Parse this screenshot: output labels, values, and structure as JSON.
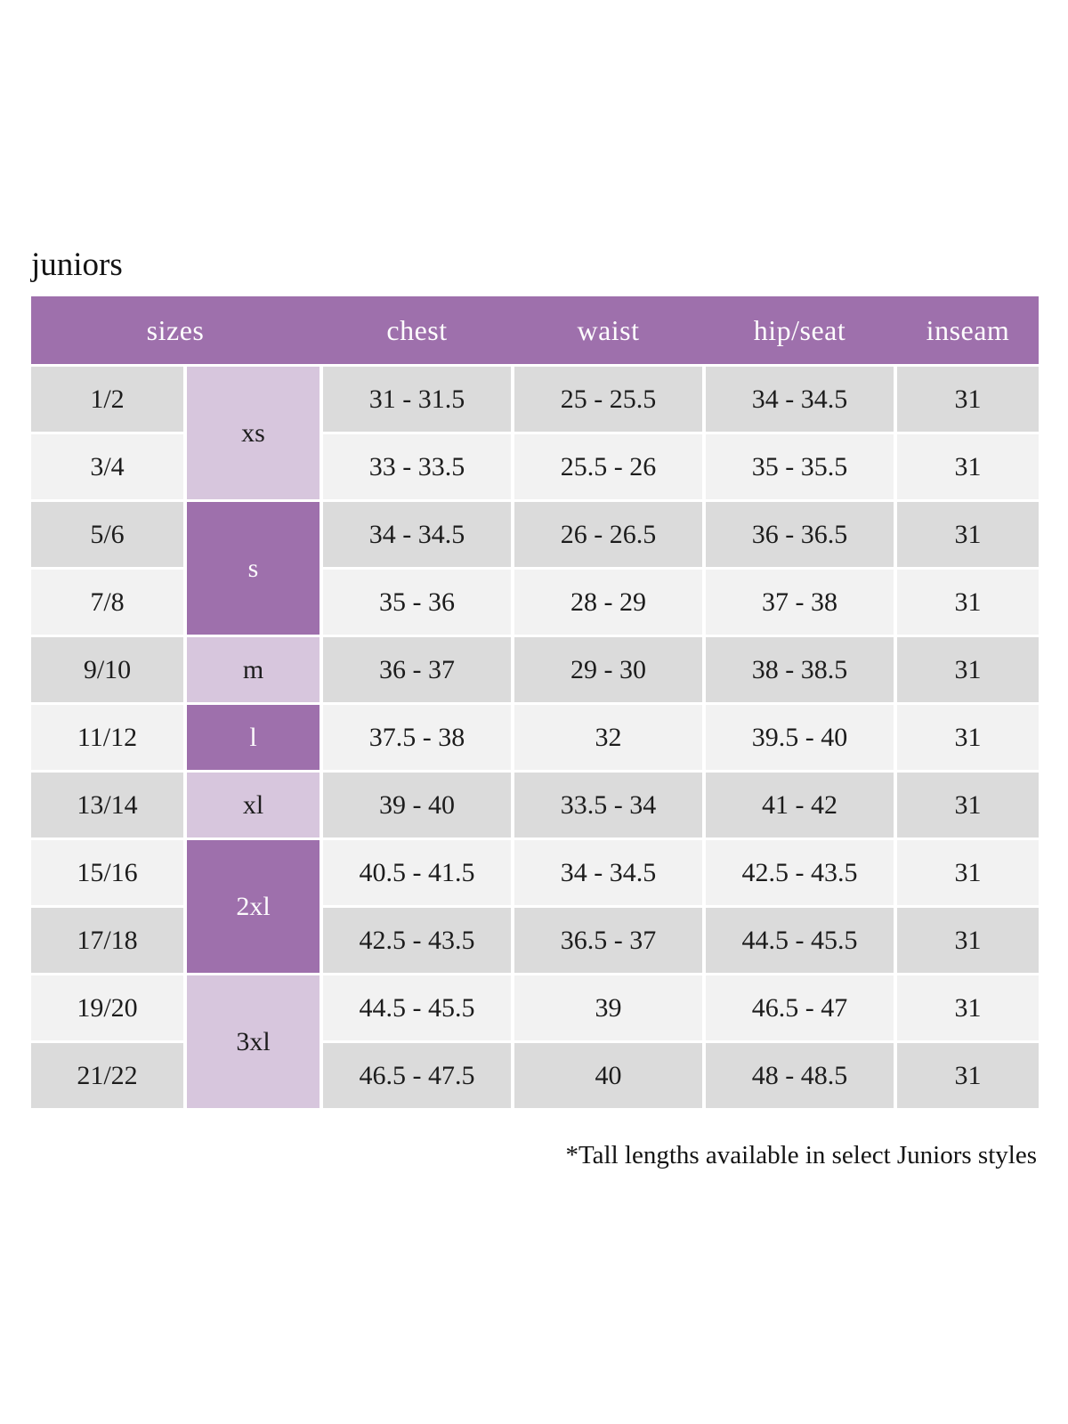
{
  "page": {
    "title": "juniors",
    "footnote": "*Tall lengths available in select Juniors styles"
  },
  "colors": {
    "header_bg": "#9e70ac",
    "size_group_dark_bg": "#9e70ac",
    "size_group_light_bg": "#d7c6dd",
    "row_gray": "#dbdbdb",
    "row_light": "#f2f2f2",
    "header_text": "#ffffff",
    "body_text": "#1c1c1c"
  },
  "table": {
    "header": {
      "sizes": "sizes",
      "chest": "chest",
      "waist": "waist",
      "hip_seat": "hip/seat",
      "inseam": "inseam"
    },
    "size_groups": [
      {
        "label": "xs",
        "rows_spanned": 2,
        "shade": "light"
      },
      {
        "label": "s",
        "rows_spanned": 2,
        "shade": "dark"
      },
      {
        "label": "m",
        "rows_spanned": 1,
        "shade": "light"
      },
      {
        "label": "l",
        "rows_spanned": 1,
        "shade": "dark"
      },
      {
        "label": "xl",
        "rows_spanned": 1,
        "shade": "light"
      },
      {
        "label": "2xl",
        "rows_spanned": 2,
        "shade": "dark"
      },
      {
        "label": "3xl",
        "rows_spanned": 2,
        "shade": "light"
      }
    ],
    "rows": [
      {
        "size": "1/2",
        "chest": "31 - 31.5",
        "waist": "25 - 25.5",
        "hip_seat": "34 - 34.5",
        "inseam": "31"
      },
      {
        "size": "3/4",
        "chest": "33 - 33.5",
        "waist": "25.5 - 26",
        "hip_seat": "35 - 35.5",
        "inseam": "31"
      },
      {
        "size": "5/6",
        "chest": "34 - 34.5",
        "waist": "26 - 26.5",
        "hip_seat": "36 - 36.5",
        "inseam": "31"
      },
      {
        "size": "7/8",
        "chest": "35 - 36",
        "waist": "28 - 29",
        "hip_seat": "37 - 38",
        "inseam": "31"
      },
      {
        "size": "9/10",
        "chest": "36 - 37",
        "waist": "29 - 30",
        "hip_seat": "38 - 38.5",
        "inseam": "31"
      },
      {
        "size": "11/12",
        "chest": "37.5 - 38",
        "waist": "32",
        "hip_seat": "39.5 - 40",
        "inseam": "31"
      },
      {
        "size": "13/14",
        "chest": "39 - 40",
        "waist": "33.5 - 34",
        "hip_seat": "41 - 42",
        "inseam": "31"
      },
      {
        "size": "15/16",
        "chest": "40.5 - 41.5",
        "waist": "34 - 34.5",
        "hip_seat": "42.5 - 43.5",
        "inseam": "31"
      },
      {
        "size": "17/18",
        "chest": "42.5 - 43.5",
        "waist": "36.5 - 37",
        "hip_seat": "44.5 - 45.5",
        "inseam": "31"
      },
      {
        "size": "19/20",
        "chest": "44.5 - 45.5",
        "waist": "39",
        "hip_seat": "46.5 - 47",
        "inseam": "31"
      },
      {
        "size": "21/22",
        "chest": "46.5 - 47.5",
        "waist": "40",
        "hip_seat": "48 - 48.5",
        "inseam": "31"
      }
    ]
  }
}
